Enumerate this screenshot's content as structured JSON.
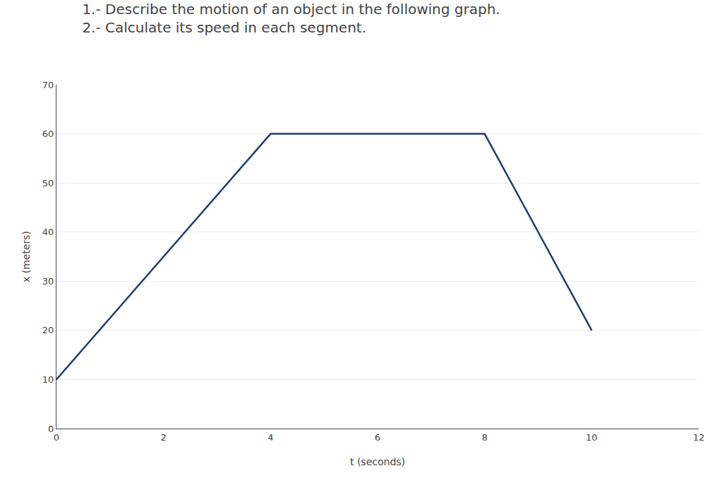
{
  "chart_data": {
    "type": "line",
    "title": "1.- Describe the motion of an object in the following graph.",
    "subtitle": "2.- Calculate its speed in each segment.",
    "x": [
      0,
      4,
      8,
      10
    ],
    "values": [
      10,
      60,
      60,
      20
    ],
    "color": "#1F3E6E",
    "xlabel": "t (seconds)",
    "ylabel": "x (meters)",
    "xlim": [
      0,
      12
    ],
    "ylim": [
      0,
      70
    ],
    "xticks": [
      0,
      2,
      4,
      6,
      8,
      10,
      12
    ],
    "yticks": [
      0,
      10,
      20,
      30,
      40,
      50,
      60,
      70
    ],
    "grid": "y"
  }
}
